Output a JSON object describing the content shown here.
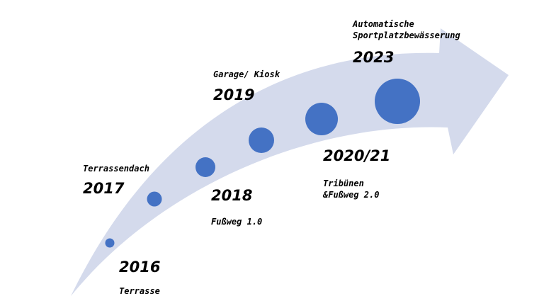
{
  "colors": {
    "arrow_fill": "#d4daec",
    "dot_fill": "#4472c4",
    "text": "#000000"
  },
  "milestones": [
    {
      "year": "2016",
      "label": "Terrasse",
      "dot_size": 1
    },
    {
      "year": "2017",
      "label": "Terrassendach",
      "dot_size": 2
    },
    {
      "year": "2018",
      "label": "Fußweg 1.0",
      "dot_size": 3
    },
    {
      "year": "2019",
      "label": "Garage/ Kiosk",
      "dot_size": 4
    },
    {
      "year": "2020/21",
      "label_line1": "Tribünen",
      "label_line2": "&Fußweg 2.0",
      "dot_size": 5
    },
    {
      "year": "2023",
      "label_line1": "Automatische",
      "label_line2": "Sportplatzbewässerung",
      "dot_size": 6
    }
  ]
}
